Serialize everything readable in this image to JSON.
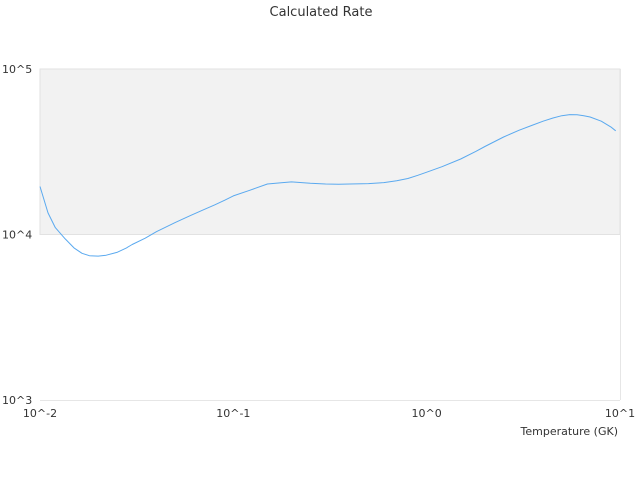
{
  "chart_data": {
    "type": "line",
    "title": "Calculated Rate",
    "xlabel": "Temperature (GK)",
    "ylabel": "",
    "x_scale": "log",
    "y_scale": "log",
    "xlim": [
      0.01,
      10
    ],
    "ylim": [
      1000,
      100000
    ],
    "x_ticks": [
      {
        "value": 0.01,
        "label": "10^-2"
      },
      {
        "value": 0.1,
        "label": "10^-1"
      },
      {
        "value": 1,
        "label": "10^0"
      },
      {
        "value": 10,
        "label": "10^1"
      }
    ],
    "y_ticks": [
      {
        "value": 1000,
        "label": "10^3"
      },
      {
        "value": 10000,
        "label": "10^4"
      },
      {
        "value": 100000,
        "label": "10^5"
      }
    ],
    "shaded_band": {
      "from": 10000,
      "to": 100000,
      "color": "#f2f2f2"
    },
    "grid": false,
    "legend": "none",
    "series": [
      {
        "color": "#5aa9ef",
        "x": [
          0.01,
          0.011,
          0.012,
          0.0135,
          0.015,
          0.0165,
          0.018,
          0.02,
          0.022,
          0.025,
          0.028,
          0.03,
          0.035,
          0.04,
          0.05,
          0.06,
          0.07,
          0.08,
          0.09,
          0.1,
          0.12,
          0.15,
          0.18,
          0.2,
          0.25,
          0.3,
          0.35,
          0.4,
          0.5,
          0.6,
          0.7,
          0.8,
          0.9,
          1.0,
          1.2,
          1.5,
          1.8,
          2.0,
          2.5,
          3.0,
          3.5,
          4.0,
          4.5,
          5.0,
          5.5,
          6.0,
          6.5,
          7.0,
          8.0,
          9.0,
          9.5
        ],
        "y": [
          19500,
          13500,
          11000,
          9400,
          8300,
          7700,
          7450,
          7400,
          7500,
          7800,
          8300,
          8700,
          9500,
          10400,
          11800,
          13000,
          14100,
          15100,
          16100,
          17100,
          18400,
          20200,
          20600,
          20800,
          20400,
          20200,
          20100,
          20200,
          20300,
          20600,
          21100,
          21800,
          22800,
          23800,
          25700,
          28600,
          31800,
          34000,
          38800,
          42600,
          45600,
          48400,
          50600,
          52200,
          53000,
          52900,
          52200,
          51300,
          48400,
          44500,
          42300
        ]
      }
    ]
  }
}
